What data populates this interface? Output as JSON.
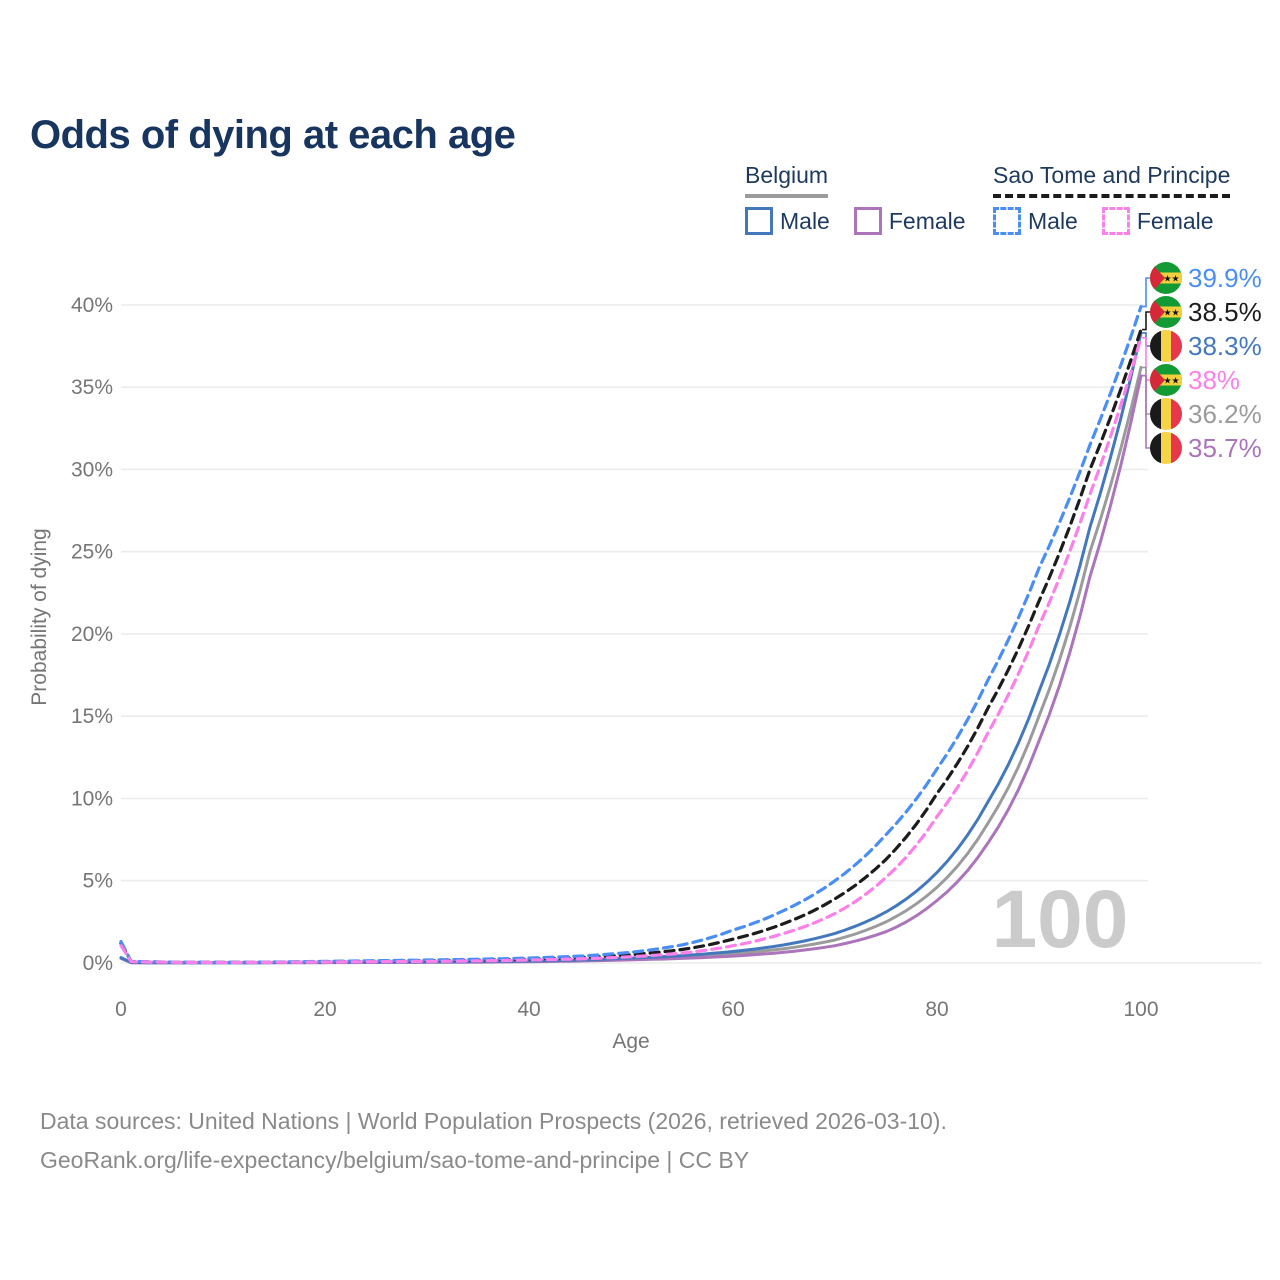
{
  "title": "Odds of dying at each age",
  "watermark_label": "100",
  "legend": {
    "groups": [
      {
        "label": "Belgium",
        "line_style": "solid",
        "line_color": "#9b9b9b",
        "items": [
          {
            "label": "Male",
            "color": "#4478bd",
            "dashed": false
          },
          {
            "label": "Female",
            "color": "#ab74bb",
            "dashed": false
          }
        ]
      },
      {
        "label": "Sao Tome and Principe",
        "line_style": "dashed",
        "line_color": "#1c1c1c",
        "items": [
          {
            "label": "Male",
            "color": "#4a8ef5",
            "dashed": true
          },
          {
            "label": "Female",
            "color": "#fb80e9",
            "dashed": true
          }
        ]
      }
    ]
  },
  "chart_data": {
    "type": "line",
    "title": "Odds of dying at each age",
    "xlabel": "Age",
    "ylabel": "Probability of dying",
    "xlim": [
      0,
      100
    ],
    "ylim": [
      0,
      42
    ],
    "xticks": [
      0,
      20,
      40,
      60,
      80,
      100
    ],
    "yticks": [
      0,
      5,
      10,
      15,
      20,
      25,
      30,
      35,
      40
    ],
    "ytick_suffix": "%",
    "grid": "horizontal",
    "legend_position": "top-right",
    "ages": [
      0,
      1,
      5,
      10,
      15,
      20,
      25,
      30,
      35,
      40,
      45,
      50,
      55,
      60,
      65,
      70,
      75,
      80,
      85,
      90,
      95,
      100
    ],
    "series": [
      {
        "name": "Sao Tome and Principe Male",
        "country": "Sao Tome and Principe",
        "sex": "Male",
        "flag": "stp",
        "color": "#4a8ef5",
        "dashed": true,
        "end_label": "39.9%",
        "values": [
          1.3,
          0.1,
          0.05,
          0.04,
          0.06,
          0.1,
          0.14,
          0.18,
          0.23,
          0.3,
          0.42,
          0.65,
          1.1,
          2.0,
          3.2,
          5.0,
          7.8,
          11.8,
          17.2,
          24.0,
          31.5,
          39.9
        ]
      },
      {
        "name": "Sao Tome and Principe Both sexes",
        "country": "Sao Tome and Principe",
        "sex": "Both",
        "flag": "stp",
        "color": "#1c1c1c",
        "dashed": true,
        "end_label": "38.5%",
        "values": [
          1.2,
          0.09,
          0.045,
          0.035,
          0.05,
          0.08,
          0.11,
          0.14,
          0.18,
          0.24,
          0.33,
          0.5,
          0.82,
          1.45,
          2.4,
          3.9,
          6.3,
          10.3,
          15.5,
          22.0,
          30.0,
          38.5
        ]
      },
      {
        "name": "Belgium Male",
        "country": "Belgium",
        "sex": "Male",
        "flag": "be",
        "color": "#4478bd",
        "dashed": false,
        "end_label": "38.3%",
        "values": [
          0.33,
          0.03,
          0.01,
          0.01,
          0.03,
          0.06,
          0.06,
          0.07,
          0.09,
          0.12,
          0.18,
          0.3,
          0.45,
          0.7,
          1.1,
          1.8,
          3.1,
          5.5,
          9.8,
          16.5,
          26.5,
          38.3
        ]
      },
      {
        "name": "Sao Tome and Principe Female",
        "country": "Sao Tome and Principe",
        "sex": "Female",
        "flag": "stp",
        "color": "#fb80e9",
        "dashed": true,
        "end_label": "38%",
        "values": [
          1.05,
          0.08,
          0.04,
          0.03,
          0.04,
          0.06,
          0.08,
          0.1,
          0.13,
          0.18,
          0.25,
          0.38,
          0.6,
          1.05,
          1.8,
          3.0,
          5.2,
          8.9,
          14.0,
          20.5,
          28.5,
          38.0
        ]
      },
      {
        "name": "Belgium Both sexes",
        "country": "Belgium",
        "sex": "Both",
        "flag": "be",
        "color": "#9b9b9b",
        "dashed": false,
        "end_label": "36.2%",
        "values": [
          0.3,
          0.025,
          0.01,
          0.01,
          0.025,
          0.04,
          0.045,
          0.055,
          0.07,
          0.1,
          0.15,
          0.24,
          0.36,
          0.56,
          0.87,
          1.4,
          2.5,
          4.6,
          8.5,
          15.0,
          25.0,
          36.2
        ]
      },
      {
        "name": "Belgium Female",
        "country": "Belgium",
        "sex": "Female",
        "flag": "be",
        "color": "#ab74bb",
        "dashed": false,
        "end_label": "35.7%",
        "values": [
          0.28,
          0.02,
          0.01,
          0.01,
          0.02,
          0.02,
          0.03,
          0.04,
          0.05,
          0.08,
          0.12,
          0.19,
          0.28,
          0.42,
          0.65,
          1.05,
          1.9,
          3.8,
          7.3,
          13.5,
          23.5,
          35.7
        ]
      }
    ]
  },
  "footer": {
    "line1": "Data sources: United Nations | World Population Prospects (2026, retrieved 2026-03-10).",
    "line2": "GeoRank.org/life-expectancy/belgium/sao-tome-and-principe | CC BY"
  }
}
